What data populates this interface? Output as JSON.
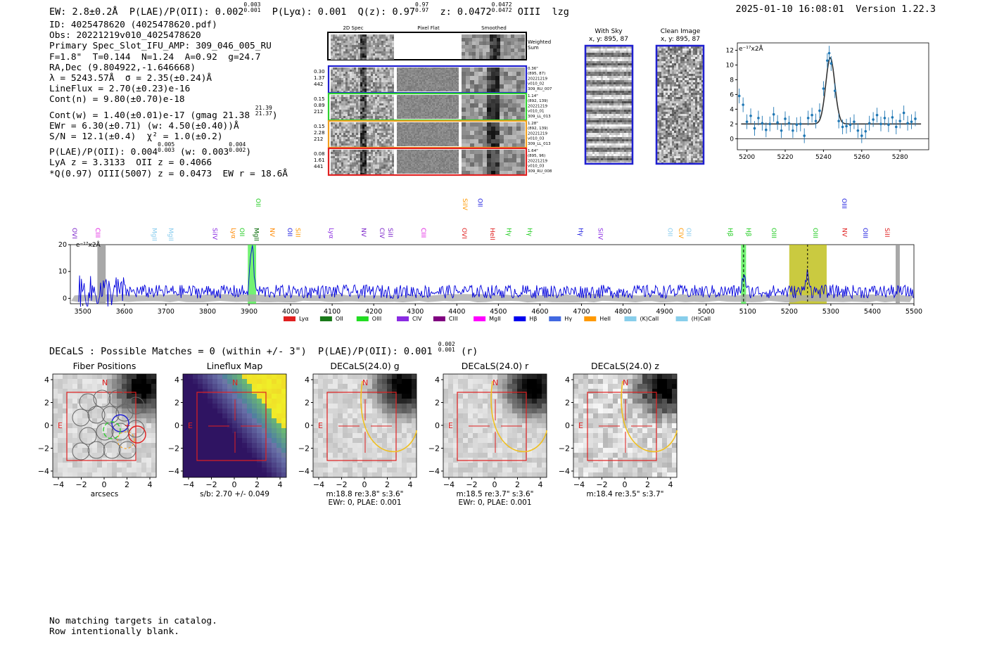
{
  "header": {
    "ew": "EW: 2.8±0.2Å",
    "plae_label": "P(LAE)/P(OII): 0.002",
    "plae_hi": "0.003",
    "plae_lo": "0.001",
    "plya": "P(Lyα): 0.001",
    "q": "Q(z): 0.97",
    "q_hi": "0.97",
    "q_lo": "0.97",
    "z": "z: 0.0472",
    "z_hi": "0.0472",
    "z_lo": "0.0472",
    "line": "OIII",
    "flag": "lzg",
    "timestamp": "2025-01-10 16:08:01",
    "version": "Version 1.22.3"
  },
  "info": {
    "id": "ID: 4025478620 (4025478620.pdf)",
    "obs": "Obs: 20221219v010_4025478620",
    "primary": "Primary Spec_Slot_IFU_AMP: 309_046_005_RU",
    "params": "F=1.8\"  T=0.144  N=1.24  A=0.92  g=24.7",
    "radec": "RA,Dec (9.804922,-1.646668)",
    "lambda": "λ = 5243.57Å  σ = 2.35(±0.24)Å",
    "lineflux": "LineFlux = 2.70(±0.23)e-16",
    "contn": "Cont(n) = 9.80(±0.70)e-18",
    "contw": "Cont(w) = 1.40(±0.01)e-17 (gmag 21.38",
    "contw_hi": "21.39",
    "contw_lo": "21.37",
    "ewr": "EWr = 6.30(±0.71) (w: 4.50(±0.40))Å",
    "sn": "S/N = 12.1(±0.4)  χ² = 1.0(±0.2)",
    "plae": "P(LAE)/P(OII): 0.004",
    "plae_hi": "0.005",
    "plae_lo": "0.003",
    "plae_w": "(w: 0.003",
    "plae_w_hi": "0.004",
    "plae_w_lo": "0.002",
    "lya": "LyA z = 3.3133  OII z = 0.4066",
    "q_oiii": "*Q(0.97) OIII(5007) z = 0.0473  EW r = 18.6Å"
  },
  "cutouts": {
    "headers": [
      "2D Spec",
      "Pixel Flat",
      "Smoothed"
    ],
    "weighted_sum": [
      "Weighted",
      "Sum"
    ],
    "rows": [
      {
        "left": [
          "0.30",
          "1.37",
          "442"
        ],
        "right": [
          "0.36\"",
          "(895, 87)",
          "20221219",
          "v010_02",
          "309_RU_007"
        ],
        "color": "#1f1fd0"
      },
      {
        "left": [
          "0.15",
          "0.89",
          "212"
        ],
        "right": [
          "1.14\"",
          "(892, 139)",
          "20221219",
          "v010_01",
          "309_LL_013"
        ],
        "color": "#2ed02e"
      },
      {
        "left": [
          "0.15",
          "2.28",
          "212"
        ],
        "right": [
          "1.28\"",
          "(892, 139)",
          "20221219",
          "v010_03",
          "309_LL_013"
        ],
        "color": "#f0a020"
      },
      {
        "left": [
          "0.08",
          "1.61",
          "441"
        ],
        "right": [
          "1.64\"",
          "(895, 96)",
          "20221219",
          "v010_03",
          "309_RU_008"
        ],
        "color": "#e02020"
      }
    ]
  },
  "sky": {
    "with_sky": "With Sky",
    "with_sky_xy": "x, y: 895, 87",
    "clean": "Clean Image",
    "clean_xy": "x, y: 895, 87"
  },
  "chart_data": [
    {
      "type": "line",
      "title": "Line fit",
      "ylabel_unit": "e⁻¹⁷x2Å",
      "xlim": [
        5195,
        5295
      ],
      "ylim": [
        -1.5,
        13
      ],
      "xticks": [
        5200,
        5220,
        5240,
        5260,
        5280
      ],
      "yticks": [
        0,
        2,
        4,
        6,
        8,
        10,
        12
      ],
      "continuum": 2.0,
      "peak_center": 5243.57,
      "peak_sigma": 2.35,
      "peak_amp": 9.0,
      "points_x": [
        5196,
        5198,
        5200,
        5202,
        5204,
        5206,
        5208,
        5210,
        5212,
        5214,
        5216,
        5218,
        5220,
        5222,
        5224,
        5226,
        5228,
        5230,
        5232,
        5234,
        5236,
        5238,
        5240,
        5242,
        5243,
        5244,
        5246,
        5248,
        5250,
        5252,
        5254,
        5256,
        5258,
        5260,
        5262,
        5264,
        5266,
        5268,
        5270,
        5272,
        5274,
        5276,
        5278,
        5280,
        5282,
        5284,
        5286,
        5288
      ],
      "points_y": [
        5.8,
        4.6,
        2.3,
        3.1,
        1.4,
        2.8,
        2.1,
        1.2,
        2.0,
        3.3,
        2.2,
        1.1,
        2.7,
        2.1,
        1.1,
        1.9,
        2.0,
        0.4,
        2.8,
        3.2,
        2.4,
        3.8,
        6.8,
        10.6,
        11.6,
        10.2,
        6.5,
        2.4,
        1.6,
        1.7,
        1.9,
        2.3,
        1.1,
        0.4,
        1.0,
        2.1,
        2.6,
        3.2,
        2.0,
        2.8,
        1.9,
        2.9,
        1.6,
        2.4,
        3.5,
        2.1,
        2.3,
        2.7
      ],
      "errors": 1.0
    },
    {
      "type": "line",
      "title": "Full spectrum",
      "ylabel_unit": "e⁻¹⁷x2Å",
      "xlim": [
        3470,
        5500
      ],
      "ylim": [
        -2,
        20
      ],
      "xticks": [
        3500,
        3600,
        3700,
        3800,
        3900,
        4000,
        4100,
        4200,
        4300,
        4400,
        4500,
        4600,
        4700,
        4800,
        4900,
        5000,
        5100,
        5200,
        5300,
        5400,
        5500
      ],
      "yticks": [
        0,
        10,
        20
      ],
      "line_features": [
        {
          "wave": 3907,
          "height": 17.5,
          "width": 4
        },
        {
          "wave": 5090,
          "height": 5.5,
          "width": 4
        },
        {
          "wave": 5244,
          "height": 8.5,
          "width": 3.5
        }
      ],
      "highlights": [
        {
          "x0": 3897,
          "x1": 3917,
          "color": "#44ee44"
        },
        {
          "x0": 5084,
          "x1": 5096,
          "color": "#44ee44"
        },
        {
          "x0": 5200,
          "x1": 5290,
          "color": "#b8b800"
        },
        {
          "x0": 3535,
          "x1": 3555,
          "color": "#999999"
        },
        {
          "x0": 5456,
          "x1": 5466,
          "color": "#999999"
        }
      ],
      "top_labels": [
        {
          "label": "OVI",
          "wave": 3502,
          "color": "#7a22c9",
          "row": 1
        },
        {
          "label": "CIII",
          "wave": 3558,
          "color": "#e020e0",
          "row": 1
        },
        {
          "label": "MgII",
          "wave": 3694,
          "color": "#88ccee",
          "row": 1
        },
        {
          "label": "MgII",
          "wave": 3734,
          "color": "#88ccee",
          "row": 1
        },
        {
          "label": "SiIV",
          "wave": 3840,
          "color": "#8a2be2",
          "row": 1
        },
        {
          "label": "Lyα",
          "wave": 3885,
          "color": "#ff8800",
          "row": 1
        },
        {
          "label": "OII",
          "wave": 3905,
          "color": "#22cc22",
          "row": 1
        },
        {
          "label": "OII",
          "wave": 3944,
          "color": "#22cc22",
          "row": 0
        },
        {
          "label": "MgII",
          "wave": 3940,
          "color": "#006600",
          "row": 1
        },
        {
          "label": "NV",
          "wave": 3978,
          "color": "#ff8800",
          "row": 1
        },
        {
          "label": "OII",
          "wave": 4020,
          "color": "#2020e0",
          "row": 1
        },
        {
          "label": "SiII",
          "wave": 4040,
          "color": "#ff9900",
          "row": 1
        },
        {
          "label": "Lyα",
          "wave": 4120,
          "color": "#8a2be2",
          "row": 1
        },
        {
          "label": "NV",
          "wave": 4198,
          "color": "#7a22c9",
          "row": 1
        },
        {
          "label": "CIV",
          "wave": 4242,
          "color": "#7a22c9",
          "row": 1
        },
        {
          "label": "SiII",
          "wave": 4262,
          "color": "#7a22c9",
          "row": 1
        },
        {
          "label": "CIII",
          "wave": 4342,
          "color": "#e020e0",
          "row": 1
        },
        {
          "label": "SiIV",
          "wave": 4442,
          "color": "#ff9900",
          "row": 0
        },
        {
          "label": "OVI",
          "wave": 4440,
          "color": "#e02020",
          "row": 1
        },
        {
          "label": "OII",
          "wave": 4478,
          "color": "#2020e0",
          "row": 0
        },
        {
          "label": "HeII",
          "wave": 4508,
          "color": "#e02020",
          "row": 1
        },
        {
          "label": "Hγ",
          "wave": 4548,
          "color": "#22cc22",
          "row": 1
        },
        {
          "label": "Hγ",
          "wave": 4598,
          "color": "#22cc22",
          "row": 1
        },
        {
          "label": "Hγ",
          "wave": 4720,
          "color": "#2020e0",
          "row": 1
        },
        {
          "label": "SiIV",
          "wave": 4768,
          "color": "#8a2be2",
          "row": 1
        },
        {
          "label": "OII",
          "wave": 4935,
          "color": "#88ccee",
          "row": 1
        },
        {
          "label": "CIV",
          "wave": 4962,
          "color": "#ff9900",
          "row": 1
        },
        {
          "label": "OII",
          "wave": 4980,
          "color": "#88ccee",
          "row": 1
        },
        {
          "label": "Hβ",
          "wave": 5080,
          "color": "#22cc22",
          "row": 1
        },
        {
          "label": "Hβ",
          "wave": 5124,
          "color": "#22cc22",
          "row": 1
        },
        {
          "label": "OIII",
          "wave": 5185,
          "color": "#22cc22",
          "row": 1
        },
        {
          "label": "OIII",
          "wave": 5285,
          "color": "#22cc22",
          "row": 1
        },
        {
          "label": "OIII",
          "wave": 5354,
          "color": "#2020e0",
          "row": 0
        },
        {
          "label": "NV",
          "wave": 5355,
          "color": "#e02020",
          "row": 1
        },
        {
          "label": "OIII",
          "wave": 5405,
          "color": "#2020e0",
          "row": 1
        },
        {
          "label": "SiII",
          "wave": 5458,
          "color": "#e02020",
          "row": 1
        }
      ],
      "legend": [
        {
          "label": "Lyα",
          "color": "#e02020"
        },
        {
          "label": "OII",
          "color": "#1a7a1a"
        },
        {
          "label": "OIII",
          "color": "#22dd22"
        },
        {
          "label": "CIV",
          "color": "#8a2be2"
        },
        {
          "label": "CIII",
          "color": "#800080"
        },
        {
          "label": "MgII",
          "color": "#ff00ff"
        },
        {
          "label": "Hβ",
          "color": "#0000ee"
        },
        {
          "label": "Hγ",
          "color": "#4169e1"
        },
        {
          "label": "HeII",
          "color": "#ff9900"
        },
        {
          "label": "(K)CaII",
          "color": "#87ceeb"
        },
        {
          "label": "(H)CaII",
          "color": "#87ceeb"
        }
      ]
    }
  ],
  "decals": {
    "line": "DECaLS : Possible Matches = 0 (within +/- 3\")  P(LAE)/P(OII): 0.001",
    "hi": "0.002",
    "lo": "0.001",
    "band": "(r)"
  },
  "thumbs": [
    {
      "title": "Fiber Positions",
      "captions": [
        "arcsecs"
      ],
      "kind": "fiber"
    },
    {
      "title": "Lineflux Map",
      "captions": [
        "s/b: 2.70 +/- 0.049"
      ],
      "kind": "lineflux"
    },
    {
      "title": "DECaLS(24.0) g",
      "captions": [
        "m:18.8  re:3.8\"  s:3.6\"",
        "EWr: 0, PLAE: 0.001"
      ],
      "kind": "decals"
    },
    {
      "title": "DECaLS(24.0) r",
      "captions": [
        "m:18.5  re:3.7\"  s:3.6\"",
        "EWr: 0, PLAE: 0.001"
      ],
      "kind": "decals"
    },
    {
      "title": "DECaLS(24.0) z",
      "captions": [
        "m:18.4  re:3.5\"  s:3.7\""
      ],
      "kind": "decals"
    }
  ],
  "thumb_axis": {
    "ticks": [
      "4",
      "2",
      "0",
      "−2",
      "−4"
    ],
    "xticks": [
      "−4",
      "−2",
      "0",
      "2",
      "4"
    ],
    "north": "N",
    "east": "E"
  },
  "footer": {
    "line1": "No matching targets in catalog.",
    "line2": "Row intentionally blank."
  }
}
